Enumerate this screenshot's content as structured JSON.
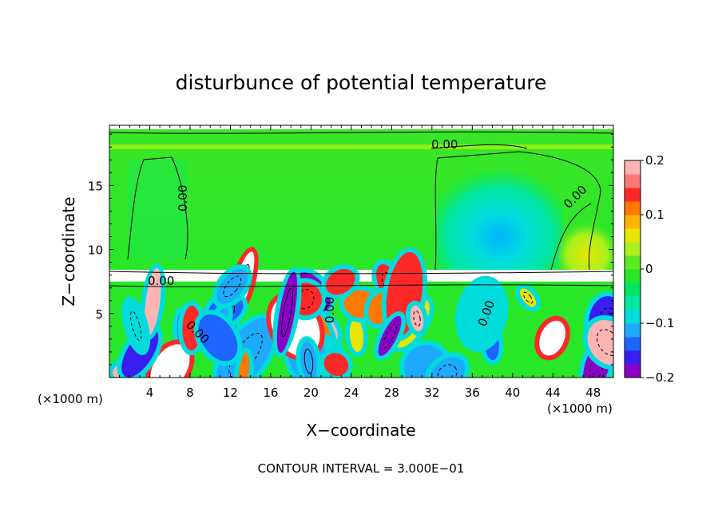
{
  "chart_data": {
    "type": "heatmap",
    "title": "disturbunce of potential temperature",
    "xlabel": "X−coordinate",
    "ylabel": "Z−coordinate",
    "x_unit_left": "(×1000 m)",
    "x_unit_right": "(×1000 m)",
    "footer": "CONTOUR INTERVAL = 3.000E−01",
    "xlim": [
      0,
      50
    ],
    "ylim": [
      0,
      19.7
    ],
    "x_ticks": [
      4,
      8,
      12,
      16,
      20,
      24,
      28,
      32,
      36,
      40,
      44,
      48
    ],
    "y_ticks": [
      5,
      10,
      15
    ],
    "colorbar": {
      "range": [
        -0.2,
        0.2
      ],
      "ticks": [
        {
          "value": 0.2,
          "label": "0.2"
        },
        {
          "value": 0.1,
          "label": "0.1"
        },
        {
          "value": 0,
          "label": "0"
        },
        {
          "value": -0.1,
          "label": "−0.1"
        },
        {
          "value": -0.2,
          "label": "−0.2"
        }
      ],
      "colors": [
        "#8b00c8",
        "#3a1ef0",
        "#1e64ff",
        "#1eaaff",
        "#00dcdc",
        "#00e6a0",
        "#00e664",
        "#28e628",
        "#5aeb1e",
        "#aaf01e",
        "#e6e600",
        "#ffb400",
        "#ff7800",
        "#ff2828",
        "#ff7878",
        "#ffb4b4"
      ]
    },
    "contour_labels": [
      "0.00",
      "0.00",
      "0.00",
      "0.00",
      "0.00",
      "0.00",
      "0.00"
    ],
    "background_value": 0,
    "regions": [
      {
        "desc": "upper layer near-zero",
        "x": [
          0,
          50
        ],
        "z": [
          8.5,
          19.5
        ],
        "value": 0.02
      },
      {
        "desc": "cool anomaly aloft",
        "x": [
          32,
          44
        ],
        "z": [
          8.5,
          17
        ],
        "value": -0.06
      },
      {
        "desc": "warm patch",
        "x": [
          46,
          50
        ],
        "z": [
          8.5,
          12
        ],
        "value": 0.08
      },
      {
        "desc": "turbulent lower layer",
        "x": [
          0,
          50
        ],
        "z": [
          0,
          7.5
        ],
        "value_range": [
          -0.2,
          0.2
        ]
      }
    ]
  }
}
